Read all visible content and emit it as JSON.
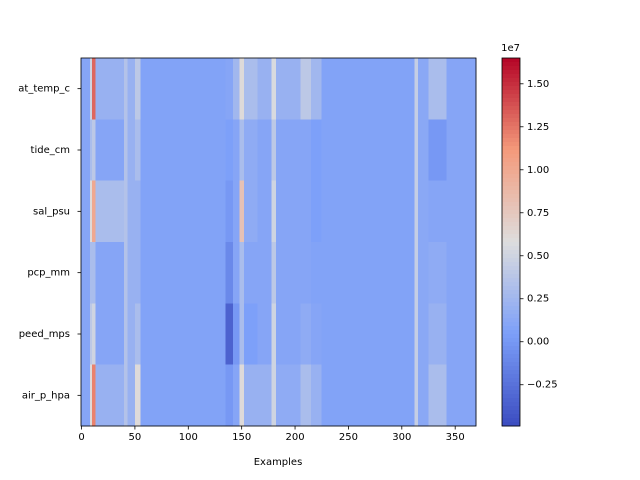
{
  "chart_data": {
    "type": "heatmap",
    "x_label": "Examples",
    "x_edges": [
      -0.5,
      8,
      10,
      13,
      40,
      43,
      50,
      55,
      135,
      142,
      148,
      152,
      165,
      178,
      182,
      205,
      215,
      225,
      312,
      315,
      325,
      342,
      369.5
    ],
    "xlim": [
      -0.5,
      369.5
    ],
    "xticks": [
      0,
      50,
      100,
      150,
      200,
      250,
      300,
      350
    ],
    "series": [
      {
        "name": "at_temp_c",
        "values": [
          0.1,
          0.5,
          1.3,
          0.2,
          0.35,
          0.2,
          0.4,
          0.08,
          0.1,
          0.25,
          0.6,
          0.3,
          0.2,
          0.55,
          0.2,
          0.4,
          0.25,
          0.08,
          0.45,
          0.12,
          0.3,
          0.1
        ]
      },
      {
        "name": "tide_cm",
        "values": [
          0.1,
          0.3,
          0.4,
          0.1,
          0.35,
          0.2,
          0.3,
          0.08,
          0.05,
          0.1,
          0.3,
          0.15,
          0.1,
          0.4,
          0.1,
          0.1,
          0.05,
          0.08,
          0.45,
          0.12,
          0.0,
          0.1
        ]
      },
      {
        "name": "sal_psu",
        "values": [
          0.1,
          0.6,
          1.0,
          0.3,
          0.35,
          0.2,
          0.2,
          0.08,
          0.0,
          0.1,
          0.8,
          0.15,
          0.1,
          0.5,
          0.1,
          0.1,
          0.05,
          0.08,
          0.45,
          0.12,
          0.1,
          0.1
        ]
      },
      {
        "name": "pcp_mm",
        "values": [
          0.1,
          0.3,
          0.3,
          0.1,
          0.35,
          0.2,
          0.2,
          0.08,
          -0.1,
          0.1,
          0.3,
          0.1,
          0.1,
          0.4,
          0.1,
          0.1,
          0.08,
          0.08,
          0.45,
          0.12,
          0.15,
          0.1
        ]
      },
      {
        "name": "peed_mps",
        "values": [
          0.1,
          0.4,
          0.5,
          0.1,
          0.35,
          0.2,
          0.3,
          0.08,
          -0.35,
          0.0,
          0.3,
          0.05,
          0.1,
          0.5,
          0.1,
          0.15,
          0.1,
          0.08,
          0.45,
          0.12,
          0.2,
          0.1
        ]
      },
      {
        "name": "air_p_hpa",
        "values": [
          0.1,
          0.6,
          1.2,
          0.2,
          0.35,
          0.2,
          0.6,
          0.08,
          0.0,
          0.1,
          0.6,
          0.2,
          0.2,
          0.5,
          0.15,
          0.3,
          0.2,
          0.08,
          0.45,
          0.12,
          0.3,
          0.1
        ]
      }
    ],
    "colormap": [
      "#3b4cc0",
      "#7c9ff9",
      "#dddddd",
      "#f49a7b",
      "#b40426"
    ],
    "clim": [
      -0.49,
      1.65
    ],
    "colorbar_ticks": [
      {
        "value": -0.25,
        "label": "−0.25"
      },
      {
        "value": 0,
        "label": "0.00"
      },
      0.25,
      {
        "value": 0.5,
        "label": "0.50"
      },
      0.75,
      {
        "value": 1,
        "label": "1.00"
      },
      1.25,
      {
        "value": 1.5,
        "label": "1.50"
      }
    ],
    "colorbar_offset": "1e7"
  }
}
